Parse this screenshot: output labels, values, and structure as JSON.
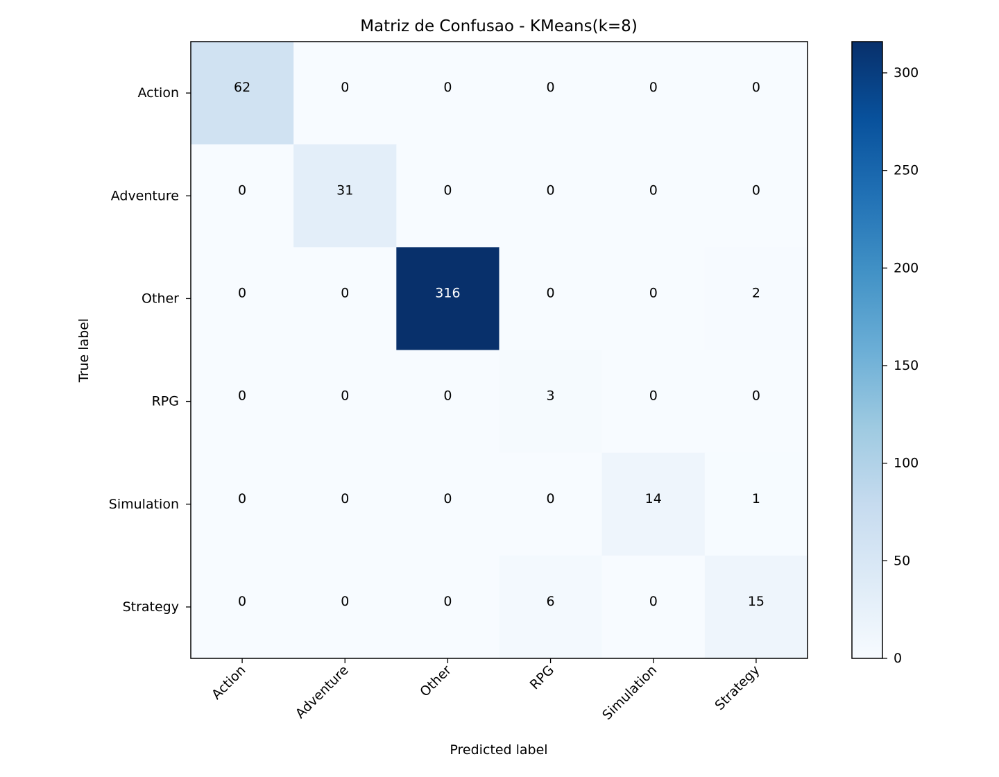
{
  "chart_data": {
    "type": "heatmap",
    "title": "Matriz de Confusao - KMeans(k=8)",
    "xlabel": "Predicted label",
    "ylabel": "True label",
    "x_categories": [
      "Action",
      "Adventure",
      "Other",
      "RPG",
      "Simulation",
      "Strategy"
    ],
    "y_categories": [
      "Action",
      "Adventure",
      "Other",
      "RPG",
      "Simulation",
      "Strategy"
    ],
    "matrix": [
      [
        62,
        0,
        0,
        0,
        0,
        0
      ],
      [
        0,
        31,
        0,
        0,
        0,
        0
      ],
      [
        0,
        0,
        316,
        0,
        0,
        2
      ],
      [
        0,
        0,
        0,
        3,
        0,
        0
      ],
      [
        0,
        0,
        0,
        0,
        14,
        1
      ],
      [
        0,
        0,
        0,
        6,
        0,
        15
      ]
    ],
    "colormap": "Blues",
    "value_range": [
      0,
      316
    ],
    "colorbar_ticks": [
      0,
      50,
      100,
      150,
      200,
      250,
      300
    ],
    "grid": false,
    "colorbar_placement": "right"
  }
}
